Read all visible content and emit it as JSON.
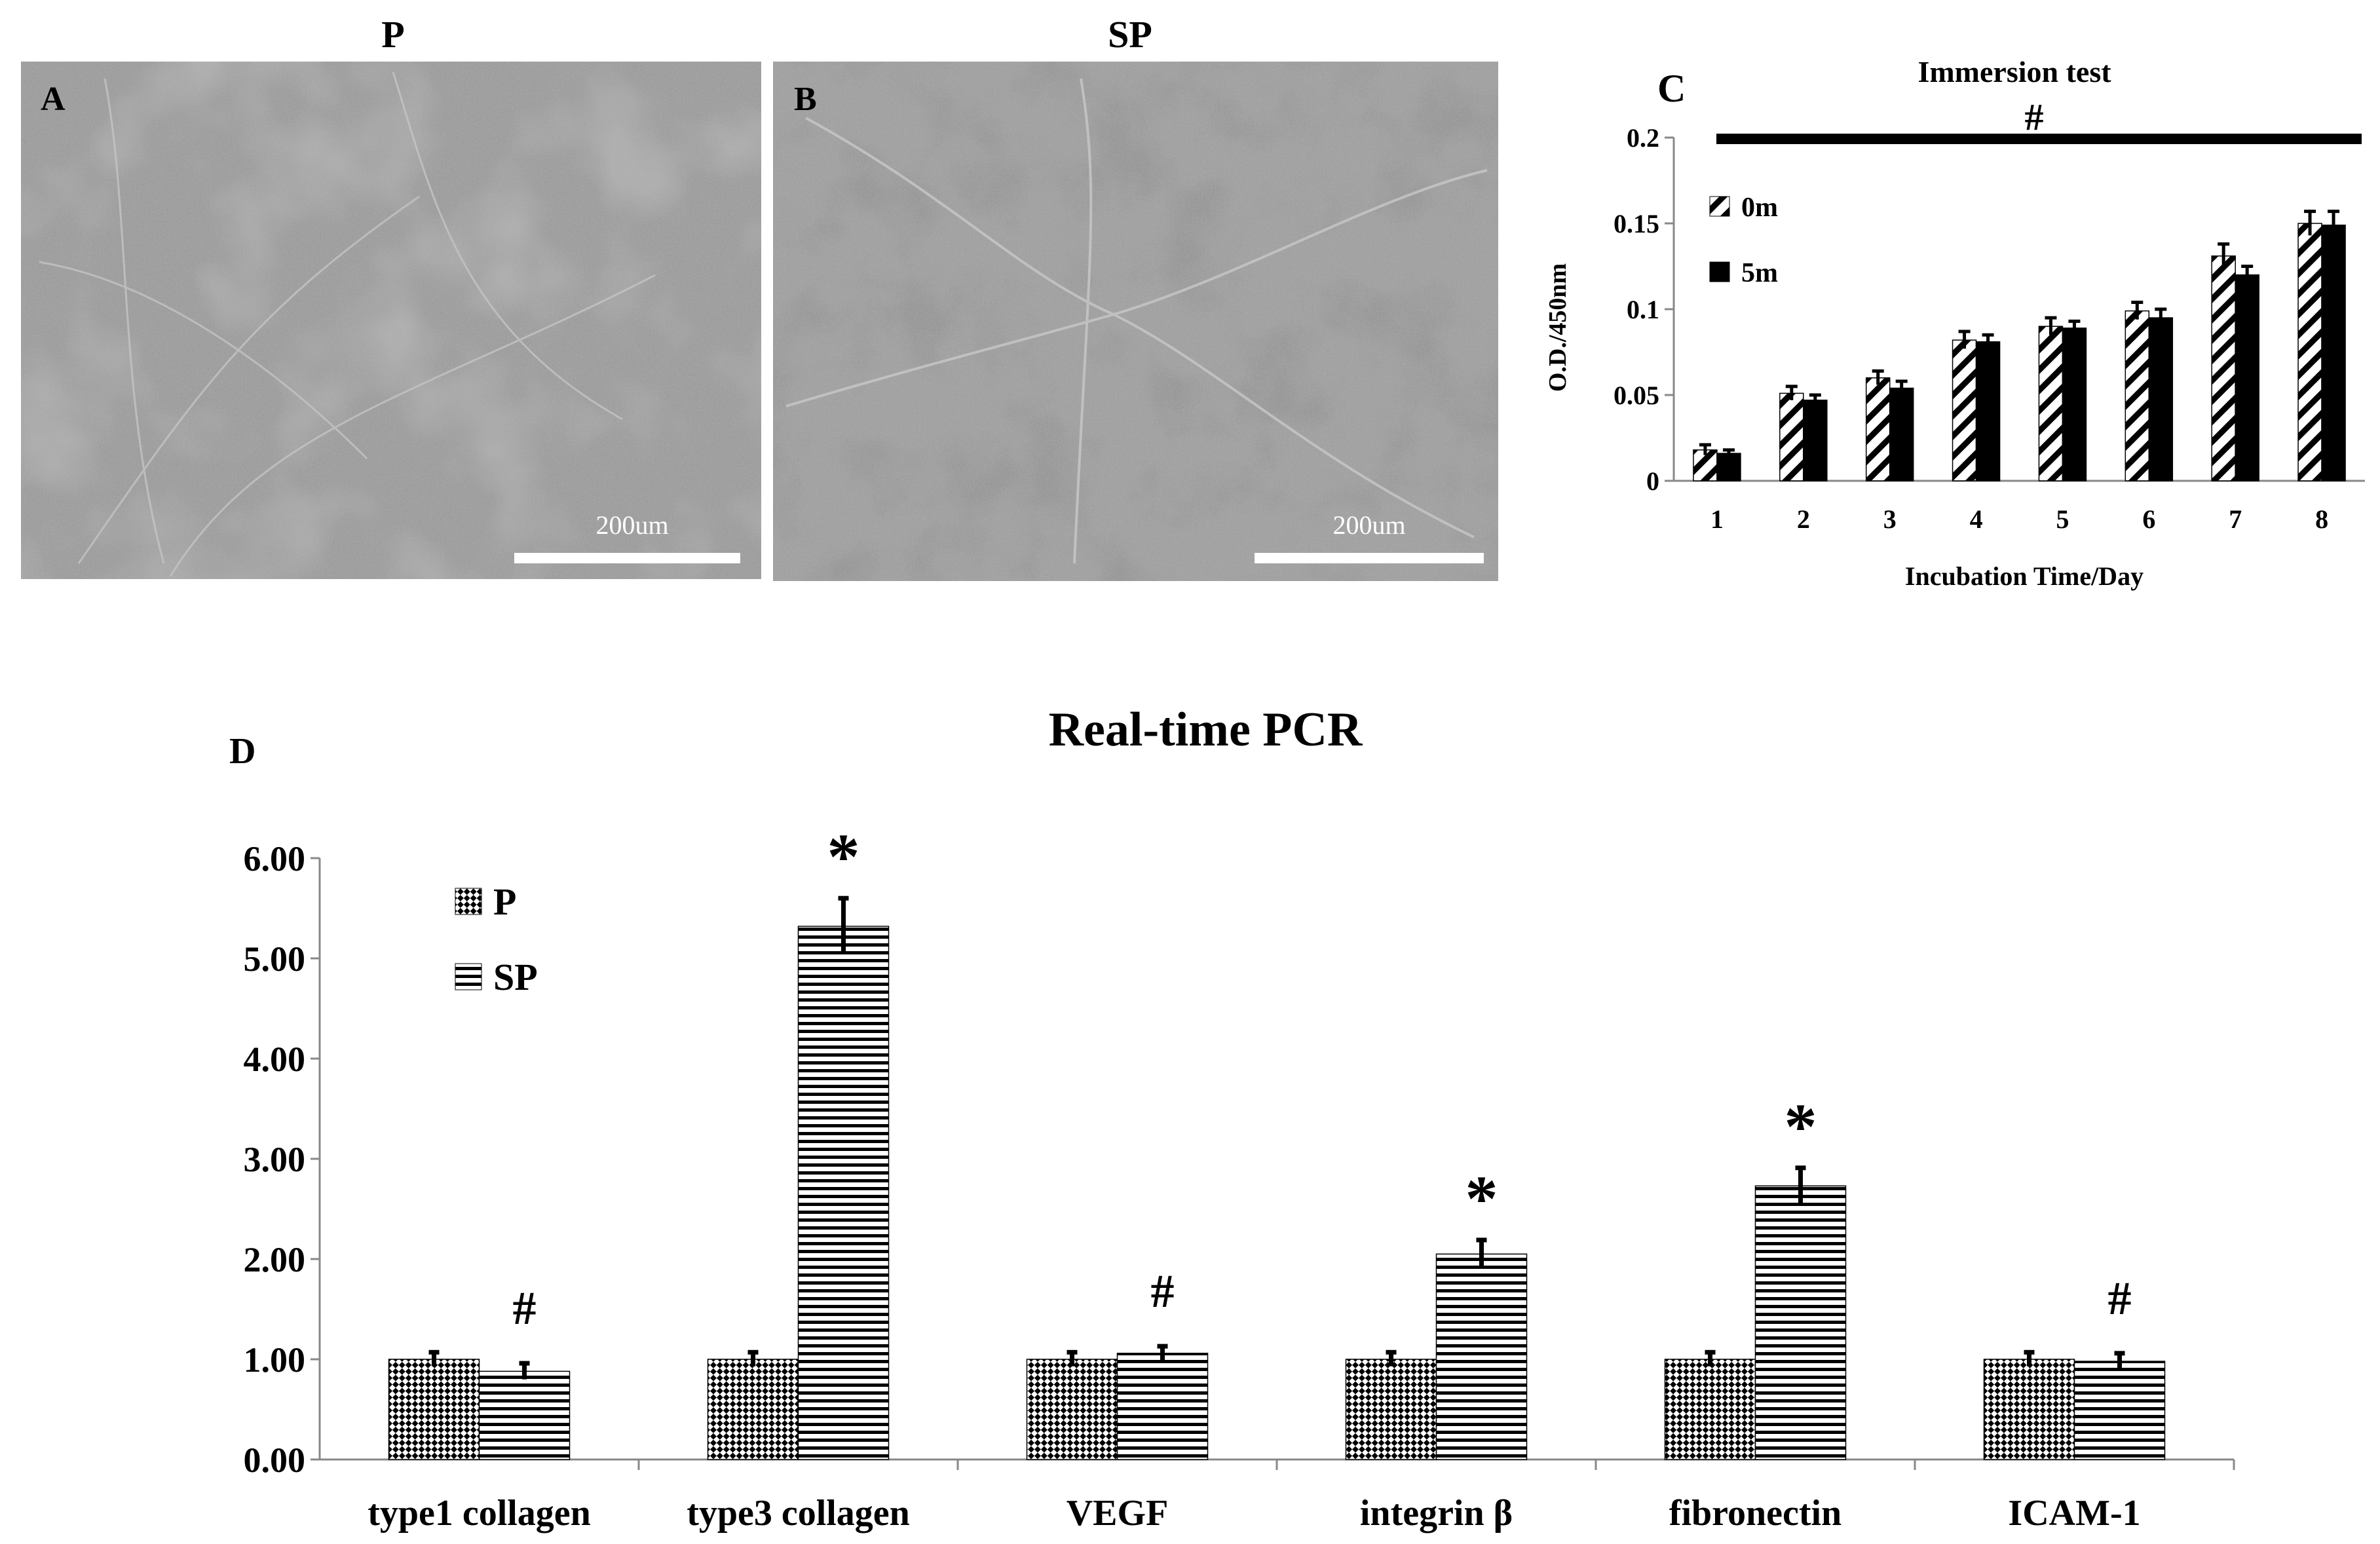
{
  "panels": {
    "A": {
      "letter": "A",
      "title": "P",
      "scale_label": "200um"
    },
    "B": {
      "letter": "B",
      "title": "SP",
      "scale_label": "200um"
    }
  },
  "chart_data": [
    {
      "panel": "C",
      "type": "bar",
      "title": "Immersion test",
      "significance_mark": "#",
      "xlabel": "Incubation Time/Day",
      "ylabel": "O.D./450nm",
      "categories": [
        "1",
        "2",
        "3",
        "4",
        "5",
        "6",
        "7",
        "8"
      ],
      "ylim": [
        0,
        0.2
      ],
      "yticks": [
        "0",
        "0.05",
        "0.1",
        "0.15",
        "0.2"
      ],
      "series": [
        {
          "name": "0m",
          "pattern": "diagonal-stripes",
          "values": [
            0.018,
            0.051,
            0.06,
            0.082,
            0.09,
            0.099,
            0.131,
            0.15
          ],
          "errors": [
            0.003,
            0.004,
            0.004,
            0.005,
            0.005,
            0.005,
            0.007,
            0.007
          ]
        },
        {
          "name": "5m",
          "pattern": "solid-black",
          "values": [
            0.016,
            0.047,
            0.054,
            0.081,
            0.089,
            0.095,
            0.12,
            0.149
          ],
          "errors": [
            0.002,
            0.003,
            0.004,
            0.004,
            0.004,
            0.005,
            0.005,
            0.008
          ]
        }
      ],
      "legend_position": "upper-left",
      "grid": false
    },
    {
      "panel": "D",
      "type": "bar",
      "title": "Real-time PCR",
      "xlabel": "",
      "ylabel": "",
      "categories": [
        "type1 collagen",
        "type3 collagen",
        "VEGF",
        "integrin β",
        "fibronectin",
        "ICAM-1"
      ],
      "ylim": [
        0,
        6
      ],
      "yticks": [
        "0.00",
        "1.00",
        "2.00",
        "3.00",
        "4.00",
        "5.00",
        "6.00"
      ],
      "series": [
        {
          "name": "P",
          "pattern": "checkered",
          "values": [
            1.0,
            1.0,
            1.0,
            1.0,
            1.0,
            1.0
          ],
          "errors": [
            0.07,
            0.07,
            0.07,
            0.07,
            0.07,
            0.07
          ]
        },
        {
          "name": "SP",
          "pattern": "horizontal-lines",
          "values": [
            0.88,
            5.32,
            1.06,
            2.05,
            2.73,
            0.98
          ],
          "errors": [
            0.08,
            0.28,
            0.07,
            0.14,
            0.18,
            0.08
          ]
        }
      ],
      "annotations": [
        "#",
        "*",
        "#",
        "*",
        "*",
        "#"
      ],
      "legend_position": "upper-left",
      "grid": false
    }
  ]
}
